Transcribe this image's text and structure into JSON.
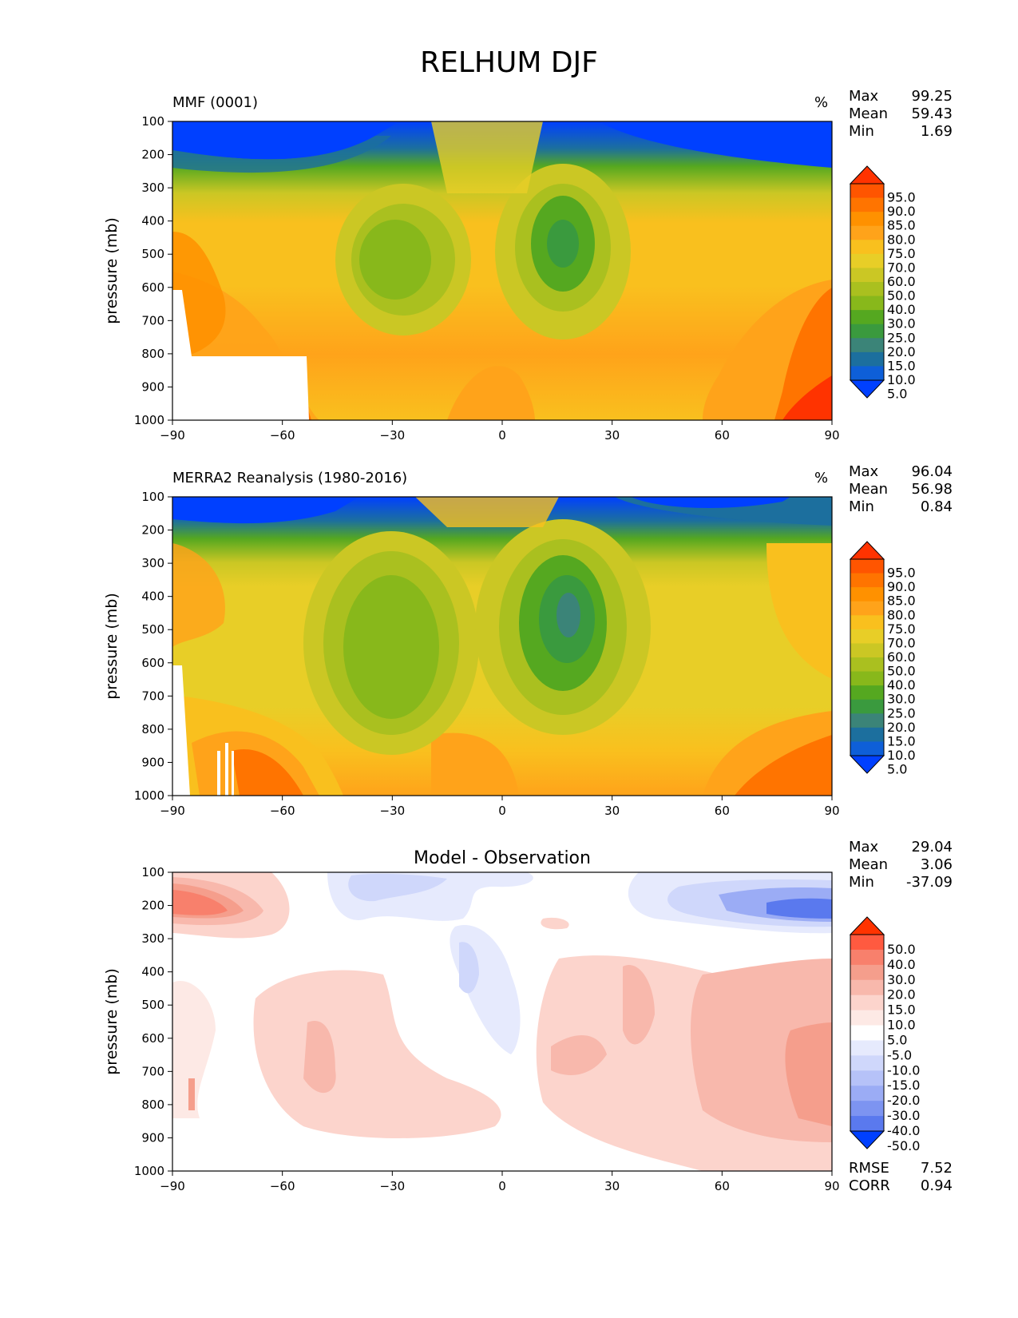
{
  "page": {
    "title": "RELHUM DJF"
  },
  "chart_data": [
    {
      "type": "heatmap",
      "title": "MMF (0001)",
      "units": "%",
      "stats": {
        "max_label": "Max",
        "max": "99.25",
        "mean_label": "Mean",
        "mean": "59.43",
        "min_label": "Min",
        "min": "1.69"
      },
      "ylabel": "pressure (mb)",
      "xlim": [
        -90,
        90
      ],
      "ylim": [
        1000,
        100
      ],
      "x_ticks": [
        "−90",
        "−60",
        "−30",
        "0",
        "30",
        "60",
        "90"
      ],
      "y_ticks": [
        "100",
        "200",
        "300",
        "400",
        "500",
        "600",
        "700",
        "800",
        "900",
        "1000"
      ],
      "levels": [
        "95.0",
        "90.0",
        "85.0",
        "80.0",
        "75.0",
        "70.0",
        "60.0",
        "50.0",
        "40.0",
        "30.0",
        "25.0",
        "20.0",
        "15.0",
        "10.0",
        "5.0"
      ],
      "colorbar_colors": [
        "#ff3300",
        "#ff5500",
        "#ff7400",
        "#ff9100",
        "#ffa31a",
        "#f9c01e",
        "#e8ce27",
        "#cbc724",
        "#aac01f",
        "#88b81b",
        "#55a820",
        "#3a9a3e",
        "#3b8478",
        "#1c6f9e",
        "#0e5fd8",
        "#0040ff"
      ]
    },
    {
      "type": "heatmap",
      "title": "MERRA2 Reanalysis (1980-2016)",
      "units": "%",
      "stats": {
        "max_label": "Max",
        "max": "96.04",
        "mean_label": "Mean",
        "mean": "56.98",
        "min_label": "Min",
        "min": "0.84"
      },
      "ylabel": "pressure (mb)",
      "xlim": [
        -90,
        90
      ],
      "ylim": [
        1000,
        100
      ],
      "x_ticks": [
        "−90",
        "−60",
        "−30",
        "0",
        "30",
        "60",
        "90"
      ],
      "y_ticks": [
        "100",
        "200",
        "300",
        "400",
        "500",
        "600",
        "700",
        "800",
        "900",
        "1000"
      ],
      "levels": [
        "95.0",
        "90.0",
        "85.0",
        "80.0",
        "75.0",
        "70.0",
        "60.0",
        "50.0",
        "40.0",
        "30.0",
        "25.0",
        "20.0",
        "15.0",
        "10.0",
        "5.0"
      ],
      "colorbar_colors": [
        "#ff3300",
        "#ff5500",
        "#ff7400",
        "#ff9100",
        "#ffa31a",
        "#f9c01e",
        "#e8ce27",
        "#cbc724",
        "#aac01f",
        "#88b81b",
        "#55a820",
        "#3a9a3e",
        "#3b8478",
        "#1c6f9e",
        "#0e5fd8",
        "#0040ff"
      ]
    },
    {
      "type": "heatmap",
      "title": "Model - Observation",
      "stats": {
        "max_label": "Max",
        "max": "29.04",
        "mean_label": "Mean",
        "mean": "3.06",
        "min_label": "Min",
        "min": "-37.09"
      },
      "metrics": {
        "rmse_label": "RMSE",
        "rmse": "7.52",
        "corr_label": "CORR",
        "corr": "0.94"
      },
      "ylabel": "pressure (mb)",
      "xlim": [
        -90,
        90
      ],
      "ylim": [
        1000,
        100
      ],
      "x_ticks": [
        "−90",
        "−60",
        "−30",
        "0",
        "30",
        "60",
        "90"
      ],
      "y_ticks": [
        "100",
        "200",
        "300",
        "400",
        "500",
        "600",
        "700",
        "800",
        "900",
        "1000"
      ],
      "levels": [
        "50.0",
        "40.0",
        "30.0",
        "20.0",
        "15.0",
        "10.0",
        "5.0",
        "-5.0",
        "-10.0",
        "-15.0",
        "-20.0",
        "-30.0",
        "-40.0",
        "-50.0"
      ],
      "colorbar_colors": [
        "#ff3300",
        "#ff5a40",
        "#f8806c",
        "#f59e8c",
        "#f8b8ac",
        "#fcd4cc",
        "#fde9e5",
        "#ffffff",
        "#e6eafd",
        "#cfd7fb",
        "#b6c2f8",
        "#9bacf5",
        "#7d94f1",
        "#5a79ee",
        "#0040ff"
      ]
    }
  ]
}
